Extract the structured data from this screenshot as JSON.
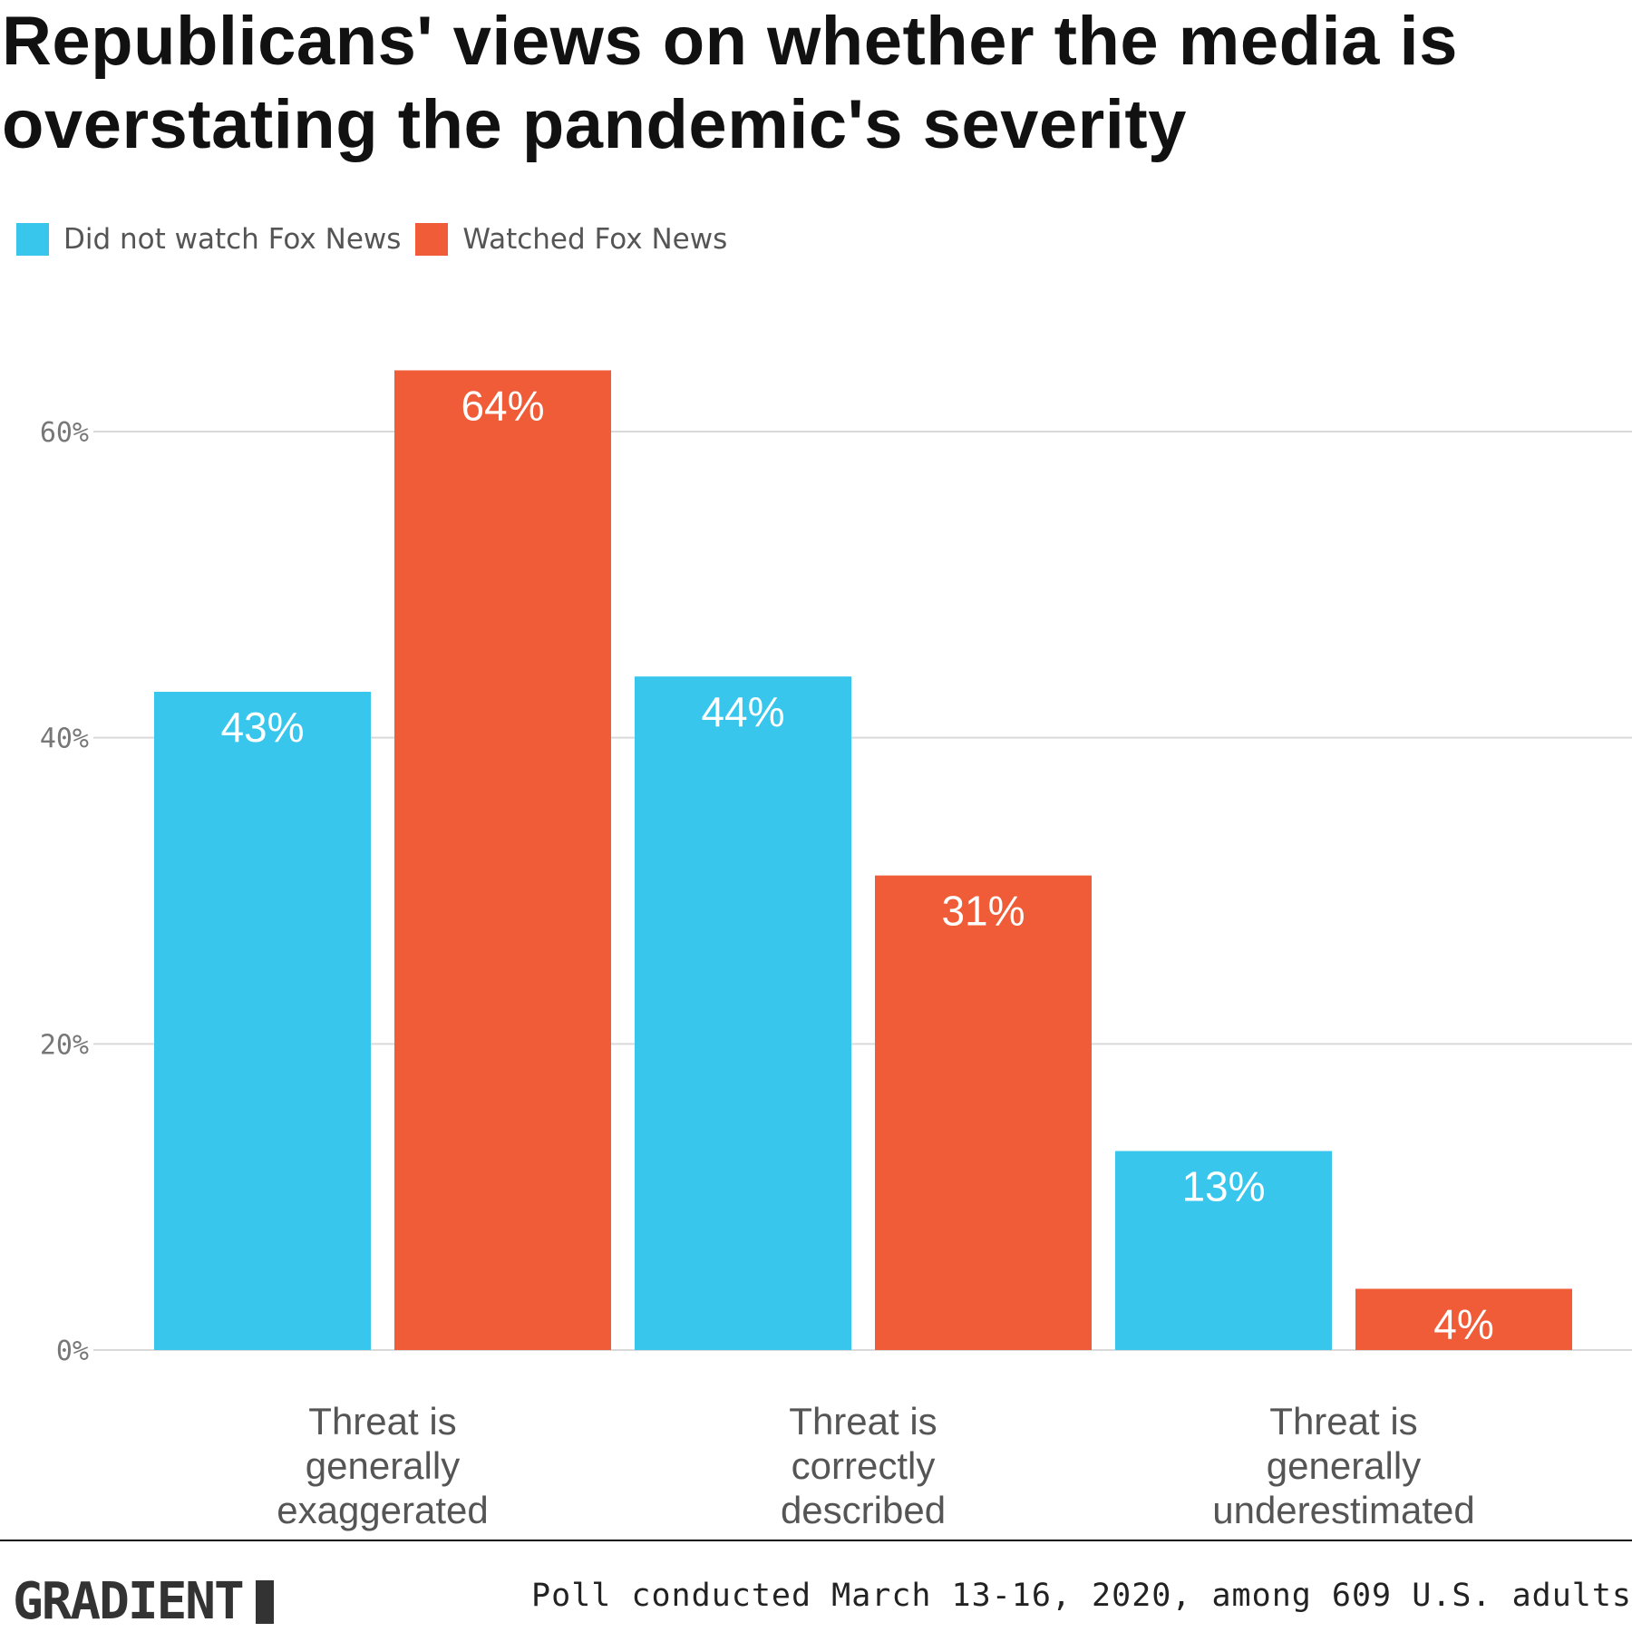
{
  "chart_data": {
    "type": "bar",
    "title": "Republicans' views on whether the media is overstating the pandemic's severity",
    "categories": [
      [
        "Threat is",
        "generally",
        "exaggerated"
      ],
      [
        "Threat is",
        "correctly",
        "described"
      ],
      [
        "Threat is",
        "generally",
        "underestimated"
      ]
    ],
    "series": [
      {
        "name": "Did not watch Fox News",
        "color": "#38C6EC",
        "values": [
          43,
          44,
          13
        ]
      },
      {
        "name": "Watched Fox News",
        "color": "#EF5C37",
        "values": [
          64,
          31,
          4
        ]
      }
    ],
    "value_suffix": "%",
    "ylim": [
      0,
      64
    ],
    "yticks": [
      0,
      20,
      40,
      60
    ],
    "ytick_labels": [
      "0%",
      "20%",
      "40%",
      "60%"
    ],
    "grid": true,
    "legend": "top-left"
  },
  "footer": {
    "logo": "GRADIENT",
    "note": "Poll conducted March 13-16, 2020, among 609 U.S. adults"
  }
}
